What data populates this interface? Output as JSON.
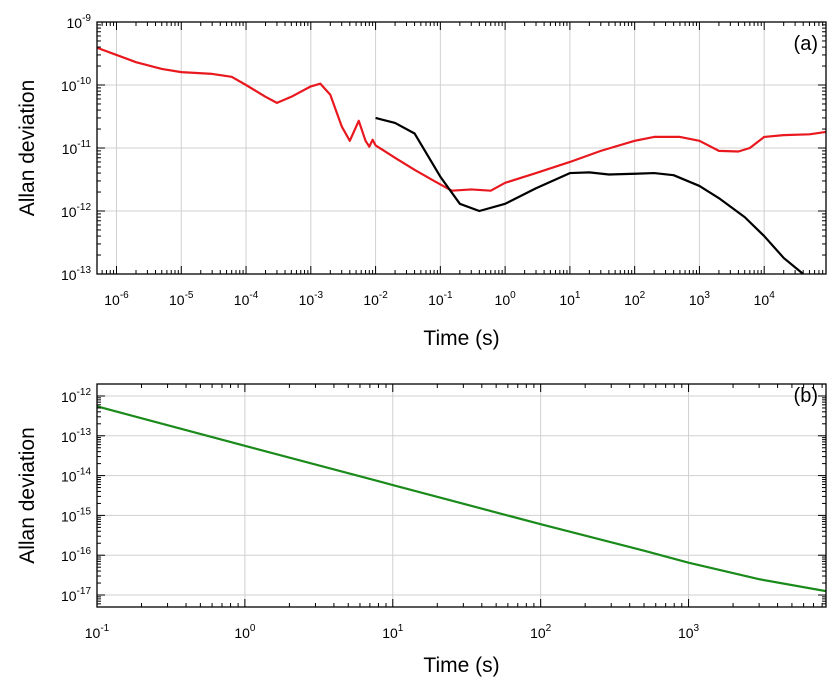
{
  "chart_data": [
    {
      "panel": "(a)",
      "type": "line",
      "xscale": "log",
      "yscale": "log",
      "xlim": [
        5e-07,
        90000
      ],
      "ylim": [
        1e-13,
        1e-09
      ],
      "xlabel": "Time (s)",
      "ylabel": "Allan deviation",
      "grid": true,
      "x_ticks": [
        {
          "base": "10",
          "exp": "-6",
          "value": 1e-06
        },
        {
          "base": "10",
          "exp": "-5",
          "value": 1e-05
        },
        {
          "base": "10",
          "exp": "-4",
          "value": 0.0001
        },
        {
          "base": "10",
          "exp": "-3",
          "value": 0.001
        },
        {
          "base": "10",
          "exp": "-2",
          "value": 0.01
        },
        {
          "base": "10",
          "exp": "-1",
          "value": 0.1
        },
        {
          "base": "10",
          "exp": "0",
          "value": 1
        },
        {
          "base": "10",
          "exp": "1",
          "value": 10
        },
        {
          "base": "10",
          "exp": "2",
          "value": 100
        },
        {
          "base": "10",
          "exp": "3",
          "value": 1000
        },
        {
          "base": "10",
          "exp": "4",
          "value": 10000
        }
      ],
      "y_ticks": [
        {
          "base": "10",
          "exp": "-13",
          "value": 1e-13
        },
        {
          "base": "10",
          "exp": "-12",
          "value": 1e-12
        },
        {
          "base": "10",
          "exp": "-11",
          "value": 1e-11
        },
        {
          "base": "10",
          "exp": "-10",
          "value": 1e-10
        },
        {
          "base": "10",
          "exp": "-9",
          "value": 1e-09
        }
      ],
      "series": [
        {
          "color": "#e8181e",
          "x": [
            5e-07,
            1e-06,
            2e-06,
            5e-06,
            1e-05,
            3e-05,
            6e-05,
            0.0001,
            0.0002,
            0.0003,
            0.0005,
            0.001,
            0.0014,
            0.002,
            0.003,
            0.004,
            0.0055,
            0.007,
            0.008,
            0.009,
            0.01,
            0.02,
            0.04,
            0.08,
            0.15,
            0.3,
            0.6,
            1,
            3,
            10,
            30,
            100,
            200,
            300,
            500,
            1000,
            2000,
            4000,
            6000,
            10000,
            20000,
            50000,
            90000
          ],
          "y": [
            3.9e-10,
            3e-10,
            2.3e-10,
            1.8e-10,
            1.6e-10,
            1.5e-10,
            1.35e-10,
            1e-10,
            6.5e-11,
            5.2e-11,
            6.5e-11,
            9.5e-11,
            1.05e-10,
            7e-11,
            2.2e-11,
            1.3e-11,
            2.7e-11,
            1.3e-11,
            1.05e-11,
            1.35e-11,
            1.1e-11,
            7e-12,
            4.5e-12,
            3e-12,
            2.1e-12,
            2.2e-12,
            2.1e-12,
            2.8e-12,
            4e-12,
            6e-12,
            9e-12,
            1.3e-11,
            1.5e-11,
            1.5e-11,
            1.5e-11,
            1.3e-11,
            9e-12,
            8.8e-12,
            1e-11,
            1.5e-11,
            1.6e-11,
            1.65e-11,
            1.8e-11
          ]
        },
        {
          "color": "#000000",
          "x": [
            0.01,
            0.02,
            0.04,
            0.1,
            0.2,
            0.4,
            1,
            3,
            10,
            20,
            40,
            100,
            200,
            400,
            1000,
            2000,
            5000,
            10000,
            20000,
            40000
          ],
          "y": [
            3e-11,
            2.5e-11,
            1.7e-11,
            3.5e-12,
            1.3e-12,
            1e-12,
            1.3e-12,
            2.3e-12,
            4e-12,
            4.1e-12,
            3.8e-12,
            3.9e-12,
            4e-12,
            3.7e-12,
            2.5e-12,
            1.6e-12,
            8e-13,
            4e-13,
            1.8e-13,
            1e-13
          ]
        }
      ]
    },
    {
      "panel": "(b)",
      "type": "line",
      "xscale": "log",
      "yscale": "log",
      "xlim": [
        0.1,
        8500
      ],
      "ylim": [
        5e-18,
        2e-12
      ],
      "xlabel": "Time (s)",
      "ylabel": "Allan deviation",
      "grid": true,
      "x_ticks": [
        {
          "base": "10",
          "exp": "-1",
          "value": 0.1
        },
        {
          "base": "10",
          "exp": "0",
          "value": 1
        },
        {
          "base": "10",
          "exp": "1",
          "value": 10
        },
        {
          "base": "10",
          "exp": "2",
          "value": 100
        },
        {
          "base": "10",
          "exp": "3",
          "value": 1000
        }
      ],
      "y_ticks": [
        {
          "base": "10",
          "exp": "-17",
          "value": 1e-17
        },
        {
          "base": "10",
          "exp": "-16",
          "value": 1e-16
        },
        {
          "base": "10",
          "exp": "-15",
          "value": 1e-15
        },
        {
          "base": "10",
          "exp": "-14",
          "value": 1e-14
        },
        {
          "base": "10",
          "exp": "-13",
          "value": 1e-13
        },
        {
          "base": "10",
          "exp": "-12",
          "value": 1e-12
        }
      ],
      "series": [
        {
          "color": "#1a8a1a",
          "x": [
            0.1,
            1,
            10,
            100,
            500,
            1000,
            3000,
            8500
          ],
          "y": [
            5.5e-13,
            5.6e-14,
            5.8e-15,
            6e-16,
            1.3e-16,
            6.5e-17,
            2.5e-17,
            1.25e-17
          ]
        }
      ]
    }
  ]
}
